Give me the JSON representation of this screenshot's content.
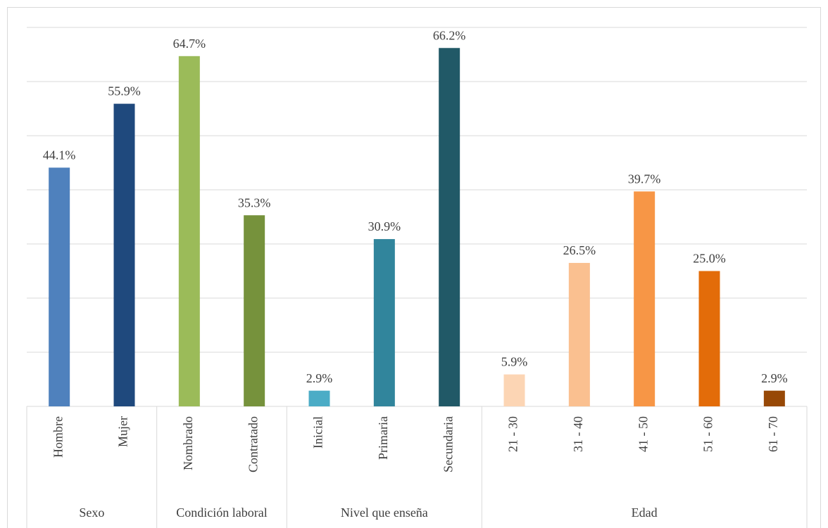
{
  "chart_data": {
    "type": "bar",
    "ylim": [
      0,
      70
    ],
    "yticks": [
      10,
      20,
      30,
      40,
      50,
      60,
      70
    ],
    "grid": true,
    "groups": [
      {
        "name": "Sexo",
        "categories": [
          "Hombre",
          "Mujer"
        ],
        "values": [
          44.1,
          55.9
        ],
        "value_labels": [
          "44.1%",
          "55.9%"
        ],
        "colors": [
          "#4f81bd",
          "#1f497d"
        ]
      },
      {
        "name": "Condición laboral",
        "categories": [
          "Nombrado",
          "Contratado"
        ],
        "values": [
          64.7,
          35.3
        ],
        "value_labels": [
          "64.7%",
          "35.3%"
        ],
        "colors": [
          "#9bbb59",
          "#76923c"
        ]
      },
      {
        "name": "Nivel que enseña",
        "categories": [
          "Inicial",
          "Primaria",
          "Secundaria"
        ],
        "values": [
          2.9,
          30.9,
          66.2
        ],
        "value_labels": [
          "2.9%",
          "30.9%",
          "66.2%"
        ],
        "colors": [
          "#4bacc6",
          "#31859c",
          "#215967"
        ]
      },
      {
        "name": "Edad",
        "categories": [
          "21 - 30",
          "31 - 40",
          "41 - 50",
          "51 - 60",
          "61 - 70"
        ],
        "values": [
          5.9,
          26.5,
          39.7,
          25.0,
          2.9
        ],
        "value_labels": [
          "5.9%",
          "26.5%",
          "39.7%",
          "25.0%",
          "2.9%"
        ],
        "colors": [
          "#fcd5b4",
          "#fac090",
          "#f79646",
          "#e36c09",
          "#974806"
        ]
      }
    ]
  }
}
